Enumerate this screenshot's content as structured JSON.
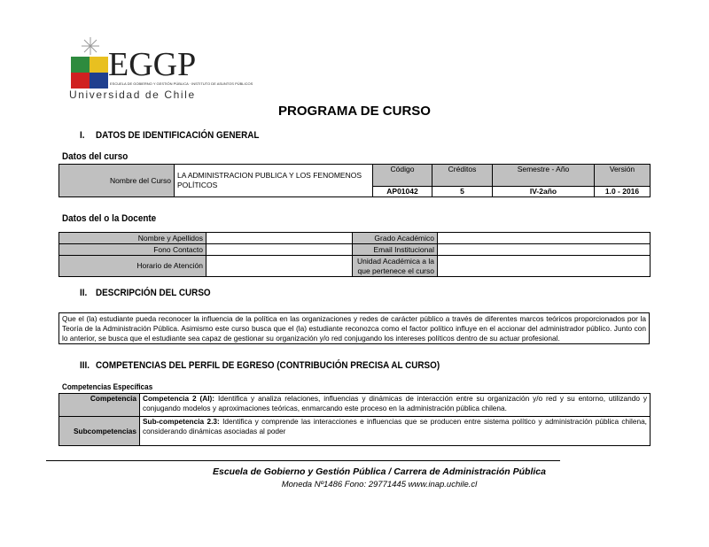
{
  "logo": {
    "text": "EGGP",
    "subtitle": "ESCUELA DE GOBIERNO Y GESTIÓN PÚBLICA · INSTITUTO DE ASUNTOS PÚBLICOS",
    "university": "Universidad de Chile"
  },
  "title": "PROGRAMA DE CURSO",
  "section1": {
    "num": "I.",
    "title": "DATOS DE IDENTIFICACIÓN GENERAL"
  },
  "course": {
    "heading": "Datos del curso",
    "name_label": "Nombre del Curso",
    "name_value": "LA ADMINISTRACION PUBLICA Y LOS FENOMENOS POLÍTICOS",
    "headers": [
      "Código",
      "Créditos",
      "Semestre - Año",
      "Versión"
    ],
    "values": [
      "AP01042",
      "5",
      "IV-2año",
      "1.0 - 2016"
    ]
  },
  "teacher": {
    "heading": "Datos del o la Docente",
    "labels": [
      "Nombre y Apellidos",
      "Fono Contacto",
      "Horario de Atención"
    ],
    "labels_right": [
      "Grado Académico",
      "Email Institucional",
      "Unidad Académica a la que pertenece el curso"
    ]
  },
  "section2": {
    "num": "II.",
    "title": "DESCRIPCIÓN DEL CURSO",
    "text": "Que el (la) estudiante pueda reconocer la influencia de la política en las organizaciones y redes de carácter público a través de diferentes marcos teóricos proporcionados por la Teoría de la Administración Pública. Asimismo este curso busca que el (la) estudiante reconozca como el factor político influye en el accionar del administrador público. Junto con lo anterior, se busca que el estudiante sea capaz de gestionar su organización y/o red conjugando los intereses políticos dentro de su actuar profesional."
  },
  "section3": {
    "num": "III.",
    "title": "COMPETENCIAS DEL PERFIL DE EGRESO (CONTRIBUCIÓN PRECISA AL CURSO)",
    "subheading": "Competencias Específicas",
    "rows": [
      {
        "label": "Competencia",
        "bold": "Competencia 2 (AI):",
        "text": " Identifica y analiza relaciones, influencias y dinámicas de interacción entre su organización y/o red y su entorno, utilizando y conjugando modelos y aproximaciones teóricas, enmarcando este proceso en la administración pública chilena."
      },
      {
        "label": "Subcompetencias",
        "bold": "Sub-competencia 2.3:",
        "text": " Identifica y comprende las interacciones e influencias que se producen entre  sistema político y administración pública chilena, considerando dinámicas asociadas al poder"
      }
    ]
  },
  "footer": {
    "line1": "Escuela de Gobierno y Gestión Pública / Carrera de Administración Pública",
    "line2": "Moneda Nº1486  Fono: 29771445  www.inap.uchile.cl"
  }
}
